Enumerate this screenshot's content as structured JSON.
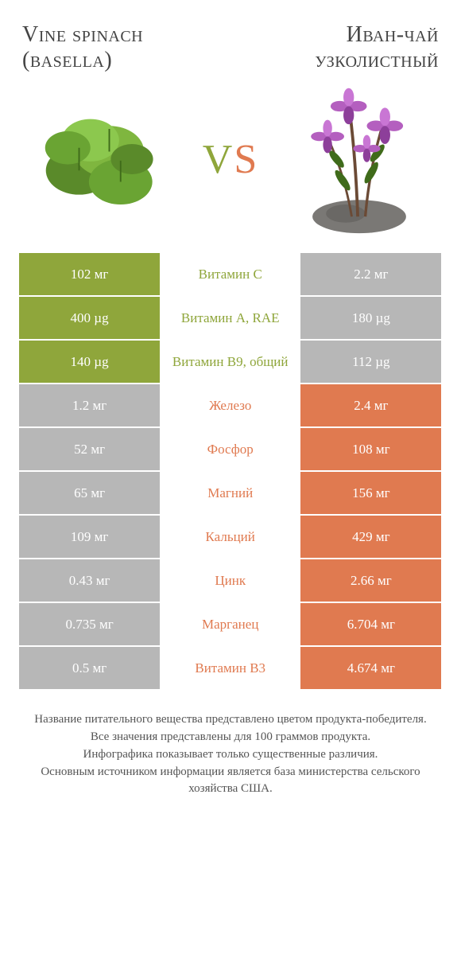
{
  "header": {
    "left_title": "Vine spinach (basella)",
    "right_title": "Иван-чай узколистный"
  },
  "vs": {
    "v": "V",
    "s": "S"
  },
  "colors": {
    "green": "#8fa63b",
    "orange": "#e07a50",
    "grey": "#b7b7b7",
    "mid_green_text": "#8fa63b",
    "mid_orange_text": "#e07a50",
    "mid_grey_text": "#888888"
  },
  "rows": [
    {
      "left": "102 мг",
      "mid": "Витамин C",
      "right": "2.2 мг",
      "winner": "left"
    },
    {
      "left": "400 µg",
      "mid": "Витамин A, RAE",
      "right": "180 µg",
      "winner": "left"
    },
    {
      "left": "140 µg",
      "mid": "Витамин B9, общий",
      "right": "112 µg",
      "winner": "left"
    },
    {
      "left": "1.2 мг",
      "mid": "Железо",
      "right": "2.4 мг",
      "winner": "right"
    },
    {
      "left": "52 мг",
      "mid": "Фосфор",
      "right": "108 мг",
      "winner": "right"
    },
    {
      "left": "65 мг",
      "mid": "Магний",
      "right": "156 мг",
      "winner": "right"
    },
    {
      "left": "109 мг",
      "mid": "Кальций",
      "right": "429 мг",
      "winner": "right"
    },
    {
      "left": "0.43 мг",
      "mid": "Цинк",
      "right": "2.66 мг",
      "winner": "right"
    },
    {
      "left": "0.735 мг",
      "mid": "Марганец",
      "right": "6.704 мг",
      "winner": "right"
    },
    {
      "left": "0.5 мг",
      "mid": "Витамин B3",
      "right": "4.674 мг",
      "winner": "right"
    }
  ],
  "footnote": "Название питательного вещества представлено цветом продукта-победителя.\nВсе значения представлены для 100 граммов продукта.\nИнфографика показывает только существенные различия.\nОсновным источником информации является база министерства сельского хозяйства США.",
  "illustrations": {
    "left_type": "spinach-leaves",
    "right_type": "fireweed-plant",
    "leaf_green": "#5a8a2a",
    "leaf_green_light": "#7fb63f",
    "flower_purple": "#b45fbf",
    "flower_purple_dark": "#8d3f9a",
    "stem_brown": "#6b4a35",
    "rock_grey": "#7a7875"
  }
}
